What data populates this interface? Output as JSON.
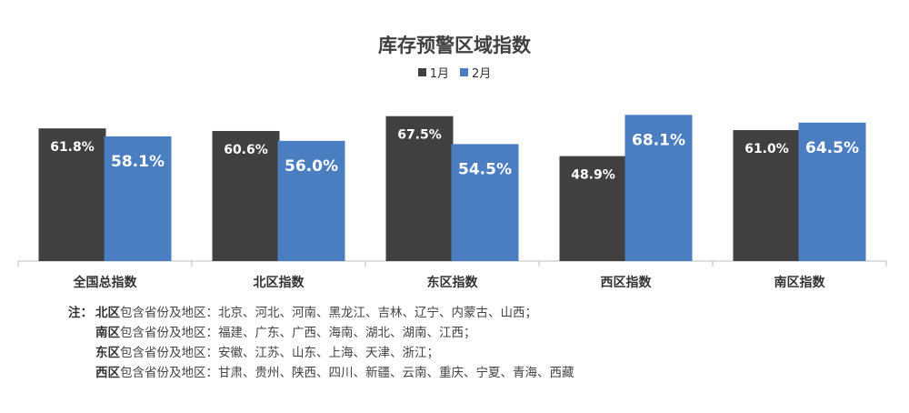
{
  "chart_data": {
    "type": "bar",
    "title": "库存预警区域指数",
    "categories": [
      "全国总指数",
      "北区指数",
      "东区指数",
      "西区指数",
      "南区指数"
    ],
    "series": [
      {
        "name": "1月",
        "color": "#404040",
        "values": [
          61.8,
          60.6,
          67.5,
          48.9,
          61.0
        ],
        "labels": [
          "61.8%",
          "60.6%",
          "67.5%",
          "48.9%",
          "61.0%"
        ]
      },
      {
        "name": "2月",
        "color": "#4a7ec0",
        "values": [
          58.1,
          56.0,
          54.5,
          68.1,
          64.5
        ],
        "labels": [
          "58.1%",
          "56.0%",
          "54.5%",
          "68.1%",
          "64.5%"
        ]
      }
    ],
    "xlabel": "",
    "ylabel": "",
    "ylim": [
      0,
      100
    ],
    "grid": false,
    "legend": "top-center"
  },
  "notes": {
    "prefix": "注：",
    "lines": [
      {
        "region": "北区",
        "text": "包含省份及地区：北京、河北、河南、黑龙江、吉林、辽宁、内蒙古、山西；"
      },
      {
        "region": "南区",
        "text": "包含省份及地区：福建、广东、广西、海南、湖北、湖南、江西；"
      },
      {
        "region": "东区",
        "text": "包含省份及地区：安徽、江苏、山东、上海、天津、浙江；"
      },
      {
        "region": "西区",
        "text": "包含省份及地区：甘肃、贵州、陕西、四川、新疆、云南、重庆、宁夏、青海、西藏"
      }
    ]
  }
}
